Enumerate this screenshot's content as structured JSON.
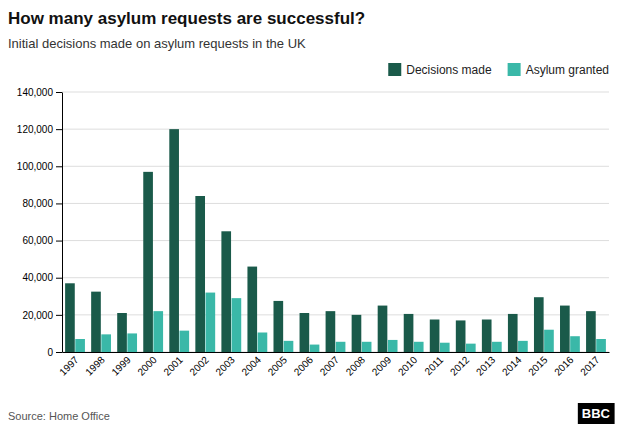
{
  "chart_data": {
    "type": "bar",
    "title": "How many asylum requests are successful?",
    "subtitle": "Initial decisions made on asylum requests in the UK",
    "source": "Source: Home Office",
    "annotations": [
      "BBC"
    ],
    "categories": [
      "1997",
      "1998",
      "1999",
      "2000",
      "2001",
      "2002",
      "2003",
      "2004",
      "2005",
      "2006",
      "2007",
      "2008",
      "2009",
      "2010",
      "2011",
      "2012",
      "2013",
      "2014",
      "2015",
      "2016",
      "2017"
    ],
    "series": [
      {
        "name": "Decisions made",
        "color": "#1a5a4a",
        "values": [
          37000,
          32500,
          21000,
          97000,
          120000,
          84000,
          65000,
          46000,
          27500,
          21000,
          22000,
          20000,
          25000,
          20500,
          17500,
          17000,
          17500,
          20500,
          29500,
          25000,
          22000
        ]
      },
      {
        "name": "Asylum granted",
        "color": "#3ab8a8",
        "values": [
          7000,
          9500,
          10000,
          22000,
          11500,
          32000,
          29000,
          10500,
          6000,
          4000,
          5500,
          5500,
          6500,
          5500,
          5000,
          4500,
          5500,
          6000,
          12000,
          8500,
          7000
        ]
      }
    ],
    "ylim": [
      0,
      140000
    ],
    "yticks": [
      0,
      {
        "value": 20000,
        "label": "20,000"
      },
      {
        "value": 40000,
        "label": "40,000"
      },
      {
        "value": 60000,
        "label": "60,000"
      },
      {
        "value": 80000,
        "label": "80,000"
      },
      {
        "value": 100000,
        "label": "100,000"
      },
      {
        "value": 120000,
        "label": "120,000"
      },
      {
        "value": 140000,
        "label": "140,000"
      }
    ],
    "grid": true,
    "legend": "upper right"
  }
}
